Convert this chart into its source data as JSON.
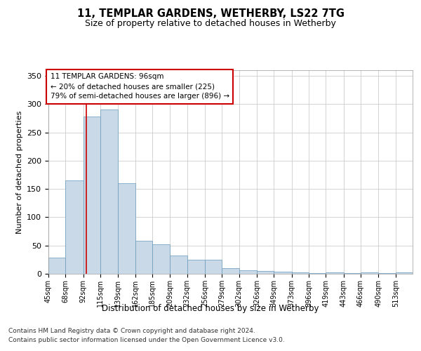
{
  "title1": "11, TEMPLAR GARDENS, WETHERBY, LS22 7TG",
  "title2": "Size of property relative to detached houses in Wetherby",
  "xlabel": "Distribution of detached houses by size in Wetherby",
  "ylabel": "Number of detached properties",
  "footnote1": "Contains HM Land Registry data © Crown copyright and database right 2024.",
  "footnote2": "Contains public sector information licensed under the Open Government Licence v3.0.",
  "annotation_line1": "11 TEMPLAR GARDENS: 96sqm",
  "annotation_line2": "← 20% of detached houses are smaller (225)",
  "annotation_line3": "79% of semi-detached houses are larger (896) →",
  "bar_color": "#c9d9e8",
  "bar_edge_color": "#6699bb",
  "grid_color": "#cccccc",
  "red_line_color": "#cc0000",
  "background_color": "#ffffff",
  "bin_labels": [
    "45sqm",
    "68sqm",
    "92sqm",
    "115sqm",
    "139sqm",
    "162sqm",
    "185sqm",
    "209sqm",
    "232sqm",
    "256sqm",
    "279sqm",
    "302sqm",
    "326sqm",
    "349sqm",
    "373sqm",
    "396sqm",
    "419sqm",
    "443sqm",
    "466sqm",
    "490sqm",
    "513sqm"
  ],
  "bar_heights": [
    28,
    165,
    278,
    290,
    160,
    58,
    52,
    32,
    25,
    25,
    10,
    6,
    5,
    4,
    3,
    1,
    3,
    1,
    3,
    1,
    3
  ],
  "red_line_x": 96,
  "bin_edges_sqm": [
    45,
    68,
    92,
    115,
    139,
    162,
    185,
    209,
    232,
    256,
    279,
    302,
    326,
    349,
    373,
    396,
    419,
    443,
    466,
    490,
    513,
    536
  ],
  "ylim": [
    0,
    360
  ],
  "yticks": [
    0,
    50,
    100,
    150,
    200,
    250,
    300,
    350
  ]
}
